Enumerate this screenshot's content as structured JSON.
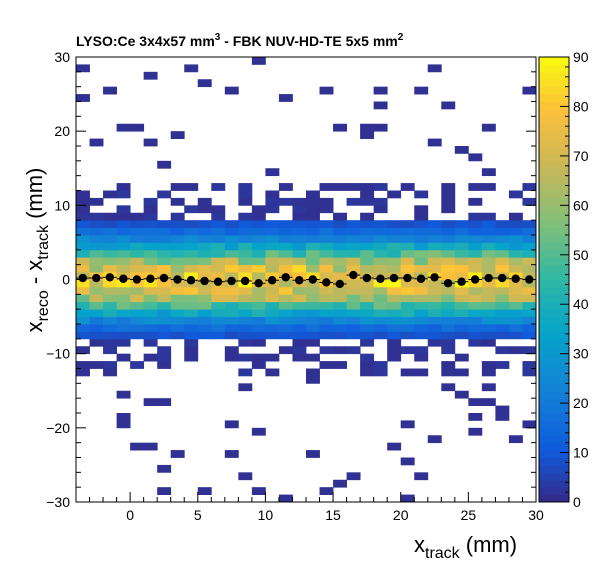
{
  "chart_data": {
    "type": "heatmap",
    "title": "LYSO:Ce 3x4x57 mm",
    "title_sup": "3",
    "title_mid": " - FBK NUV-HD-TE 5x5 mm",
    "title_sup2": "2",
    "xlabel_main": "x",
    "xlabel_sub": "track",
    "xlabel_unit": " (mm)",
    "ylabel_x1": "x",
    "ylabel_sub1": "reco",
    "ylabel_mid": " - x",
    "ylabel_sub2": "track",
    "ylabel_unit": " (mm)",
    "xlim": [
      -4,
      30
    ],
    "ylim": [
      -30,
      30
    ],
    "zlim": [
      0,
      90
    ],
    "x_ticks": [
      "0",
      "5",
      "10",
      "15",
      "20",
      "25",
      "30"
    ],
    "y_ticks": [
      "−30",
      "−20",
      "−10",
      "0",
      "10",
      "20",
      "30"
    ],
    "z_ticks": [
      "0",
      "10",
      "20",
      "30",
      "40",
      "50",
      "60",
      "70",
      "80",
      "90"
    ],
    "profile_x": [
      -3.5,
      -2.5,
      -1.5,
      -0.5,
      0.5,
      1.5,
      2.5,
      3.5,
      4.5,
      5.5,
      6.5,
      7.5,
      8.5,
      9.5,
      10.5,
      11.5,
      12.5,
      13.5,
      14.5,
      15.5,
      16.5,
      17.5,
      18.5,
      19.5,
      20.5,
      21.5,
      22.5,
      23.5,
      24.5,
      25.5,
      26.5,
      27.5,
      28.5,
      29.5
    ],
    "profile_y": [
      0.2,
      0.2,
      0.3,
      0.1,
      0.0,
      0.1,
      0.2,
      0.0,
      -0.1,
      -0.2,
      -0.3,
      -0.2,
      -0.2,
      -0.5,
      -0.1,
      0.3,
      -0.1,
      0.0,
      -0.4,
      -0.6,
      0.6,
      0.2,
      0.1,
      0.2,
      0.2,
      0.1,
      0.3,
      -0.5,
      -0.3,
      0.0,
      0.2,
      0.2,
      0.1,
      0.0
    ],
    "grid": false,
    "palette": "kBird"
  }
}
